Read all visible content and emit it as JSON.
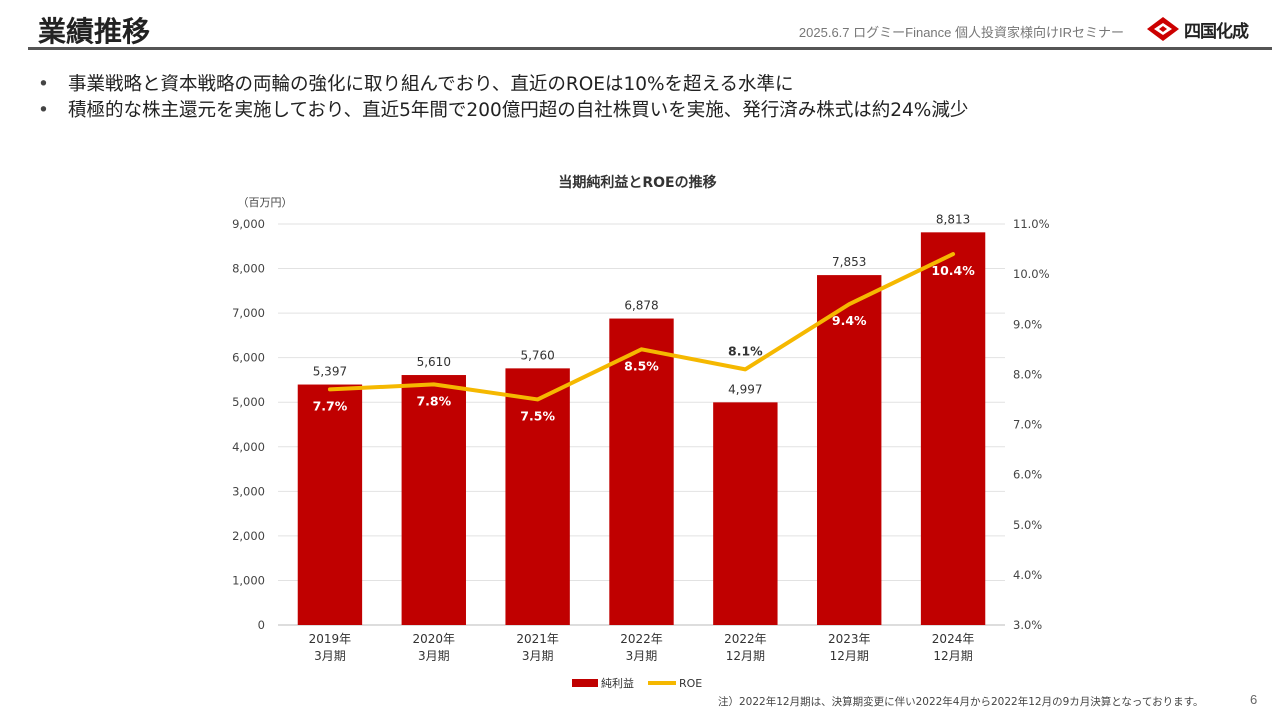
{
  "header": {
    "title": "業績推移",
    "event": "2025.6.7 ログミーFinance 個人投資家様向けIRセミナー",
    "logo_text": "四国化成",
    "logo_color": "#cc0000"
  },
  "bullets": [
    "事業戦略と資本戦略の両輪の強化に取り組んでおり、直近のROEは10%を超える水準に",
    "積極的な株主還元を実施しており、直近5年間で200億円超の自社株買いを実施、発行済み株式は約24%減少"
  ],
  "footnote": "注）2022年12月期は、決算期変更に伴い2022年4月から2022年12月の9カ月決算となっております。",
  "page_number": "6",
  "chart_data": {
    "type": "bar",
    "title": "当期純利益とROEの推移",
    "y_unit_label": "（百万円）",
    "categories": [
      [
        "2019年",
        "3月期"
      ],
      [
        "2020年",
        "3月期"
      ],
      [
        "2021年",
        "3月期"
      ],
      [
        "2022年",
        "3月期"
      ],
      [
        "2022年",
        "12月期"
      ],
      [
        "2023年",
        "12月期"
      ],
      [
        "2024年",
        "12月期"
      ]
    ],
    "series": [
      {
        "name": "純利益",
        "type": "bar",
        "axis": "left",
        "color": "#c00000",
        "values": [
          5397,
          5610,
          5760,
          6878,
          4997,
          7853,
          8813
        ],
        "labels": [
          "5,397",
          "5,610",
          "5,760",
          "6,878",
          "4,997",
          "7,853",
          "8,813"
        ]
      },
      {
        "name": "ROE",
        "type": "line",
        "axis": "right",
        "color": "#f5b800",
        "values": [
          7.7,
          7.8,
          7.5,
          8.5,
          8.1,
          9.4,
          10.4
        ],
        "labels": [
          "7.7%",
          "7.8%",
          "7.5%",
          "8.5%",
          "8.1%",
          "9.4%",
          "10.4%"
        ]
      }
    ],
    "y_left": {
      "min": 0,
      "max": 9000,
      "ticks": [
        "0",
        "1,000",
        "2,000",
        "3,000",
        "4,000",
        "5,000",
        "6,000",
        "7,000",
        "8,000",
        "9,000"
      ]
    },
    "y_right": {
      "min": 3.0,
      "max": 11.0,
      "ticks": [
        "3.0%",
        "4.0%",
        "5.0%",
        "6.0%",
        "7.0%",
        "8.0%",
        "9.0%",
        "10.0%",
        "11.0%"
      ]
    },
    "grid": true,
    "legend_position": "bottom-center"
  }
}
